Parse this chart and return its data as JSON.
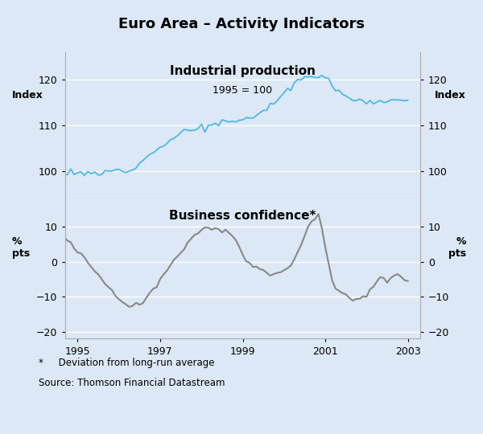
{
  "title": "Euro Area – Activity Indicators",
  "background_color": "#dce8f5",
  "top_panel": {
    "label": "Industrial production",
    "sublabel": "1995 = 100",
    "ylabel_left": "Index",
    "ylabel_right": "Index",
    "ylim": [
      94,
      126
    ],
    "yticks": [
      100,
      110,
      120
    ],
    "color": "#4db8e8",
    "linewidth": 1.3
  },
  "bottom_panel": {
    "label": "Business confidence*",
    "ylabel_left": "%\npts",
    "ylabel_right": "%\npts",
    "ylim": [
      -22,
      18
    ],
    "yticks": [
      -20,
      -10,
      0,
      10
    ],
    "color": "#888888",
    "linewidth": 1.5
  },
  "xlim_start": 1994.7,
  "xlim_end": 2003.3,
  "xticks": [
    1995,
    1997,
    1999,
    2001,
    2003
  ],
  "grid_color": "#c8dff0",
  "spine_color": "#aaaaaa",
  "footnote1": "*     Deviation from long-run average",
  "footnote2": "Source: Thomson Financial Datastream"
}
